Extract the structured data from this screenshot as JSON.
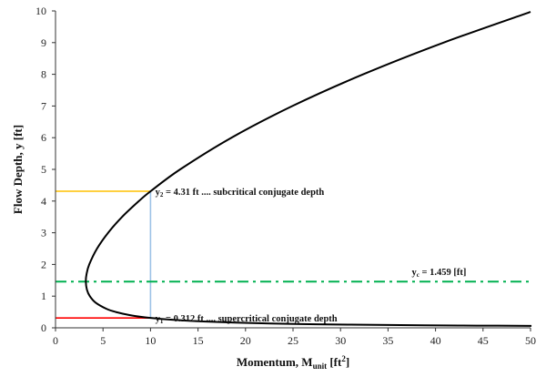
{
  "chart_data": {
    "type": "line",
    "xlabel": {
      "main": "Momentum, M",
      "sub": "unit",
      "unit": " [ft",
      "sup": "2",
      "close": "]"
    },
    "ylabel": "Flow Depth, y [ft]",
    "xlim": [
      0,
      50
    ],
    "ylim": [
      0,
      10
    ],
    "xticks": [
      "0",
      "5",
      "10",
      "15",
      "20",
      "25",
      "30",
      "35",
      "40",
      "45",
      "50"
    ],
    "yticks": [
      "0",
      "1",
      "2",
      "3",
      "4",
      "5",
      "6",
      "7",
      "8",
      "9",
      "10"
    ],
    "grid": false,
    "series": [
      {
        "color": "#000000",
        "points": [
          [
            50.1,
            0.062
          ],
          [
            44.37,
            0.07
          ],
          [
            38.83,
            0.08
          ],
          [
            31.07,
            0.1
          ],
          [
            25.89,
            0.12
          ],
          [
            20.72,
            0.15
          ],
          [
            15.55,
            0.2
          ],
          [
            12.46,
            0.25
          ],
          [
            10.0,
            0.312
          ],
          [
            7.85,
            0.4
          ],
          [
            6.34,
            0.5
          ],
          [
            5.36,
            0.6
          ],
          [
            4.2,
            0.8
          ],
          [
            3.61,
            1.0
          ],
          [
            3.31,
            1.2
          ],
          [
            3.19,
            1.459
          ],
          [
            3.27,
            1.7
          ],
          [
            3.55,
            2.0
          ],
          [
            4.37,
            2.5
          ],
          [
            5.54,
            3.0
          ],
          [
            7.01,
            3.5
          ],
          [
            8.78,
            4.0
          ],
          [
            10.01,
            4.31
          ],
          [
            13.12,
            5.0
          ],
          [
            18.52,
            6.0
          ],
          [
            24.94,
            7.0
          ],
          [
            32.39,
            8.0
          ],
          [
            40.85,
            9.0
          ],
          [
            50.0,
            9.97
          ]
        ]
      }
    ],
    "reference_lines": [
      {
        "name": "y2-line",
        "from": [
          0,
          4.31
        ],
        "to": [
          10,
          4.31
        ],
        "color": "#FFC000",
        "style": "solid"
      },
      {
        "name": "y1-line",
        "from": [
          0,
          0.312
        ],
        "to": [
          10,
          0.312
        ],
        "color": "#FF0000",
        "style": "solid"
      },
      {
        "name": "m-vertical-line",
        "from": [
          10,
          0.312
        ],
        "to": [
          10,
          4.31
        ],
        "color": "#9DC3E6",
        "style": "solid"
      },
      {
        "name": "yc-line",
        "from": [
          0,
          1.459
        ],
        "to": [
          50,
          1.459
        ],
        "color": "#00B050",
        "style": "dashdot"
      }
    ],
    "annotations": [
      {
        "name": "y2-annotation",
        "var": "y",
        "sub": "2",
        "text": " = 4.31 ft .... subcritical conjugate depth",
        "at": [
          10.5,
          4.31
        ]
      },
      {
        "name": "y1-annotation",
        "var": "y",
        "sub": "1",
        "text": " = 0.312 ft .... supercritical conjugate depth",
        "at": [
          10.5,
          0.312
        ]
      },
      {
        "name": "yc-annotation",
        "var": "y",
        "sub": "c",
        "text": " = 1.459 [ft]",
        "at": [
          37.5,
          1.459
        ]
      }
    ]
  }
}
